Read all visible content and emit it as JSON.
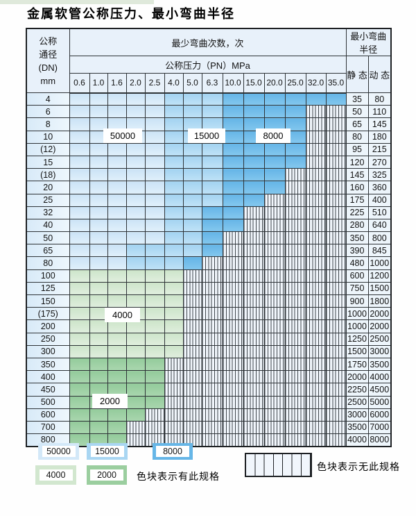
{
  "title": "金属软管公称压力、最小弯曲半径",
  "table": {
    "corner_lines": [
      "公称",
      "通径",
      "(DN)",
      "mm"
    ],
    "bend_header": "最少弯曲次数，次",
    "pressure_header": "公称压力（PN）MPa",
    "radius_header": "最小弯曲半径",
    "static_label": "静 态",
    "dynamic_label": "动 态",
    "pressure_cols": [
      "0.6",
      "1.0",
      "1.6",
      "2.0",
      "2.5",
      "4.0",
      "5.0",
      "6.3",
      "10.0",
      "15.0",
      "20.0",
      "25.0",
      "32.0",
      "35.0"
    ],
    "rows": [
      {
        "dn": "4",
        "grade": "blue",
        "end": 13,
        "med": 5,
        "dark": 8,
        "static": "35",
        "dynamic": "80"
      },
      {
        "dn": "6",
        "grade": "blue",
        "end": 11,
        "med": 5,
        "dark": 8,
        "static": "50",
        "dynamic": "110"
      },
      {
        "dn": "8",
        "grade": "blue",
        "end": 11,
        "med": 5,
        "dark": 8,
        "static": "65",
        "dynamic": "145"
      },
      {
        "dn": "10",
        "grade": "blue",
        "end": 11,
        "med": 5,
        "dark": 8,
        "static": "80",
        "dynamic": "180"
      },
      {
        "dn": "(12)",
        "grade": "blue",
        "end": 11,
        "med": 5,
        "dark": 8,
        "static": "95",
        "dynamic": "215"
      },
      {
        "dn": "15",
        "grade": "blue",
        "end": 11,
        "med": 5,
        "dark": 8,
        "static": "120",
        "dynamic": "270"
      },
      {
        "dn": "(18)",
        "grade": "blue",
        "end": 10,
        "med": 5,
        "dark": 8,
        "static": "145",
        "dynamic": "325"
      },
      {
        "dn": "20",
        "grade": "blue",
        "end": 10,
        "med": 5,
        "dark": 8,
        "static": "160",
        "dynamic": "360"
      },
      {
        "dn": "25",
        "grade": "blue",
        "end": 9,
        "med": 5,
        "dark": 8,
        "static": "175",
        "dynamic": "400"
      },
      {
        "dn": "32",
        "grade": "blue",
        "end": 8,
        "med": 5,
        "dark": 7,
        "static": "225",
        "dynamic": "510"
      },
      {
        "dn": "40",
        "grade": "blue",
        "end": 8,
        "med": 5,
        "dark": 7,
        "static": "280",
        "dynamic": "640"
      },
      {
        "dn": "50",
        "grade": "blue",
        "end": 7,
        "med": 5,
        "dark": 7,
        "static": "350",
        "dynamic": "800"
      },
      {
        "dn": "65",
        "grade": "blue",
        "end": 7,
        "med": 3,
        "dark": 7,
        "static": "390",
        "dynamic": "845"
      },
      {
        "dn": "80",
        "grade": "blue",
        "end": 6,
        "med": 3,
        "dark": 6,
        "static": "480",
        "dynamic": "1000"
      },
      {
        "dn": "100",
        "grade": "green-light",
        "end": 5,
        "static": "600",
        "dynamic": "1200"
      },
      {
        "dn": "125",
        "grade": "green-light",
        "end": 5,
        "static": "750",
        "dynamic": "1500"
      },
      {
        "dn": "150",
        "grade": "green-light",
        "end": 5,
        "static": "900",
        "dynamic": "1800"
      },
      {
        "dn": "(175)",
        "grade": "green-light",
        "end": 5,
        "static": "1000",
        "dynamic": "2000"
      },
      {
        "dn": "200",
        "grade": "green-light",
        "end": 5,
        "static": "1000",
        "dynamic": "2000"
      },
      {
        "dn": "250",
        "grade": "green-light",
        "end": 5,
        "static": "1250",
        "dynamic": "2500"
      },
      {
        "dn": "300",
        "grade": "green-light",
        "end": 5,
        "static": "1500",
        "dynamic": "3000"
      },
      {
        "dn": "350",
        "grade": "green-mid",
        "end": 4,
        "static": "1750",
        "dynamic": "3500"
      },
      {
        "dn": "400",
        "grade": "green-mid",
        "end": 4,
        "static": "2000",
        "dynamic": "4000"
      },
      {
        "dn": "450",
        "grade": "green-mid",
        "end": 4,
        "static": "2250",
        "dynamic": "4500"
      },
      {
        "dn": "500",
        "grade": "green-mid",
        "end": 4,
        "static": "2500",
        "dynamic": "5000"
      },
      {
        "dn": "600",
        "grade": "green-mid",
        "end": 3,
        "static": "3000",
        "dynamic": "6000"
      },
      {
        "dn": "700",
        "grade": "green-mid",
        "end": 2,
        "static": "3500",
        "dynamic": "7000"
      },
      {
        "dn": "800",
        "grade": "green-mid",
        "end": 2,
        "static": "4000",
        "dynamic": "8000"
      }
    ]
  },
  "region_labels": [
    "50000",
    "15000",
    "8000",
    "4000",
    "2000"
  ],
  "legend": {
    "items": [
      {
        "value": "50000",
        "color": "#d3e8f8"
      },
      {
        "value": "15000",
        "color": "#a9d6f2"
      },
      {
        "value": "8000",
        "color": "#66b6e7"
      },
      {
        "value": "4000",
        "color": "#d2e7cf"
      },
      {
        "value": "2000",
        "color": "#9bce9f"
      }
    ],
    "has_spec_text": "色块表示有此规格",
    "no_spec_text": "色块表示无此规格"
  },
  "colors": {
    "blue_50000_a": "#cbe3f6",
    "blue_50000_b": "#e0f0fb",
    "blue_15000_a": "#a3d3f1",
    "blue_15000_b": "#bfe2f7",
    "blue_8000_a": "#65b5e7",
    "blue_8000_b": "#83c7ee",
    "green_4000_a": "#cde5ca",
    "green_4000_b": "#dfeedd",
    "green_2000_a": "#93cb9b",
    "green_2000_b": "#a9d6ae",
    "hatch_bg": "#f1f6fc",
    "hatch_line": "#3c4349",
    "header_bg": "#e8f1fa",
    "dn_bg_a": "#d8eaf8",
    "dn_bg_b": "#eef7fd",
    "value_bg": "#edf5fb",
    "border": "#2e3337",
    "outer_border": "#1d2023"
  }
}
